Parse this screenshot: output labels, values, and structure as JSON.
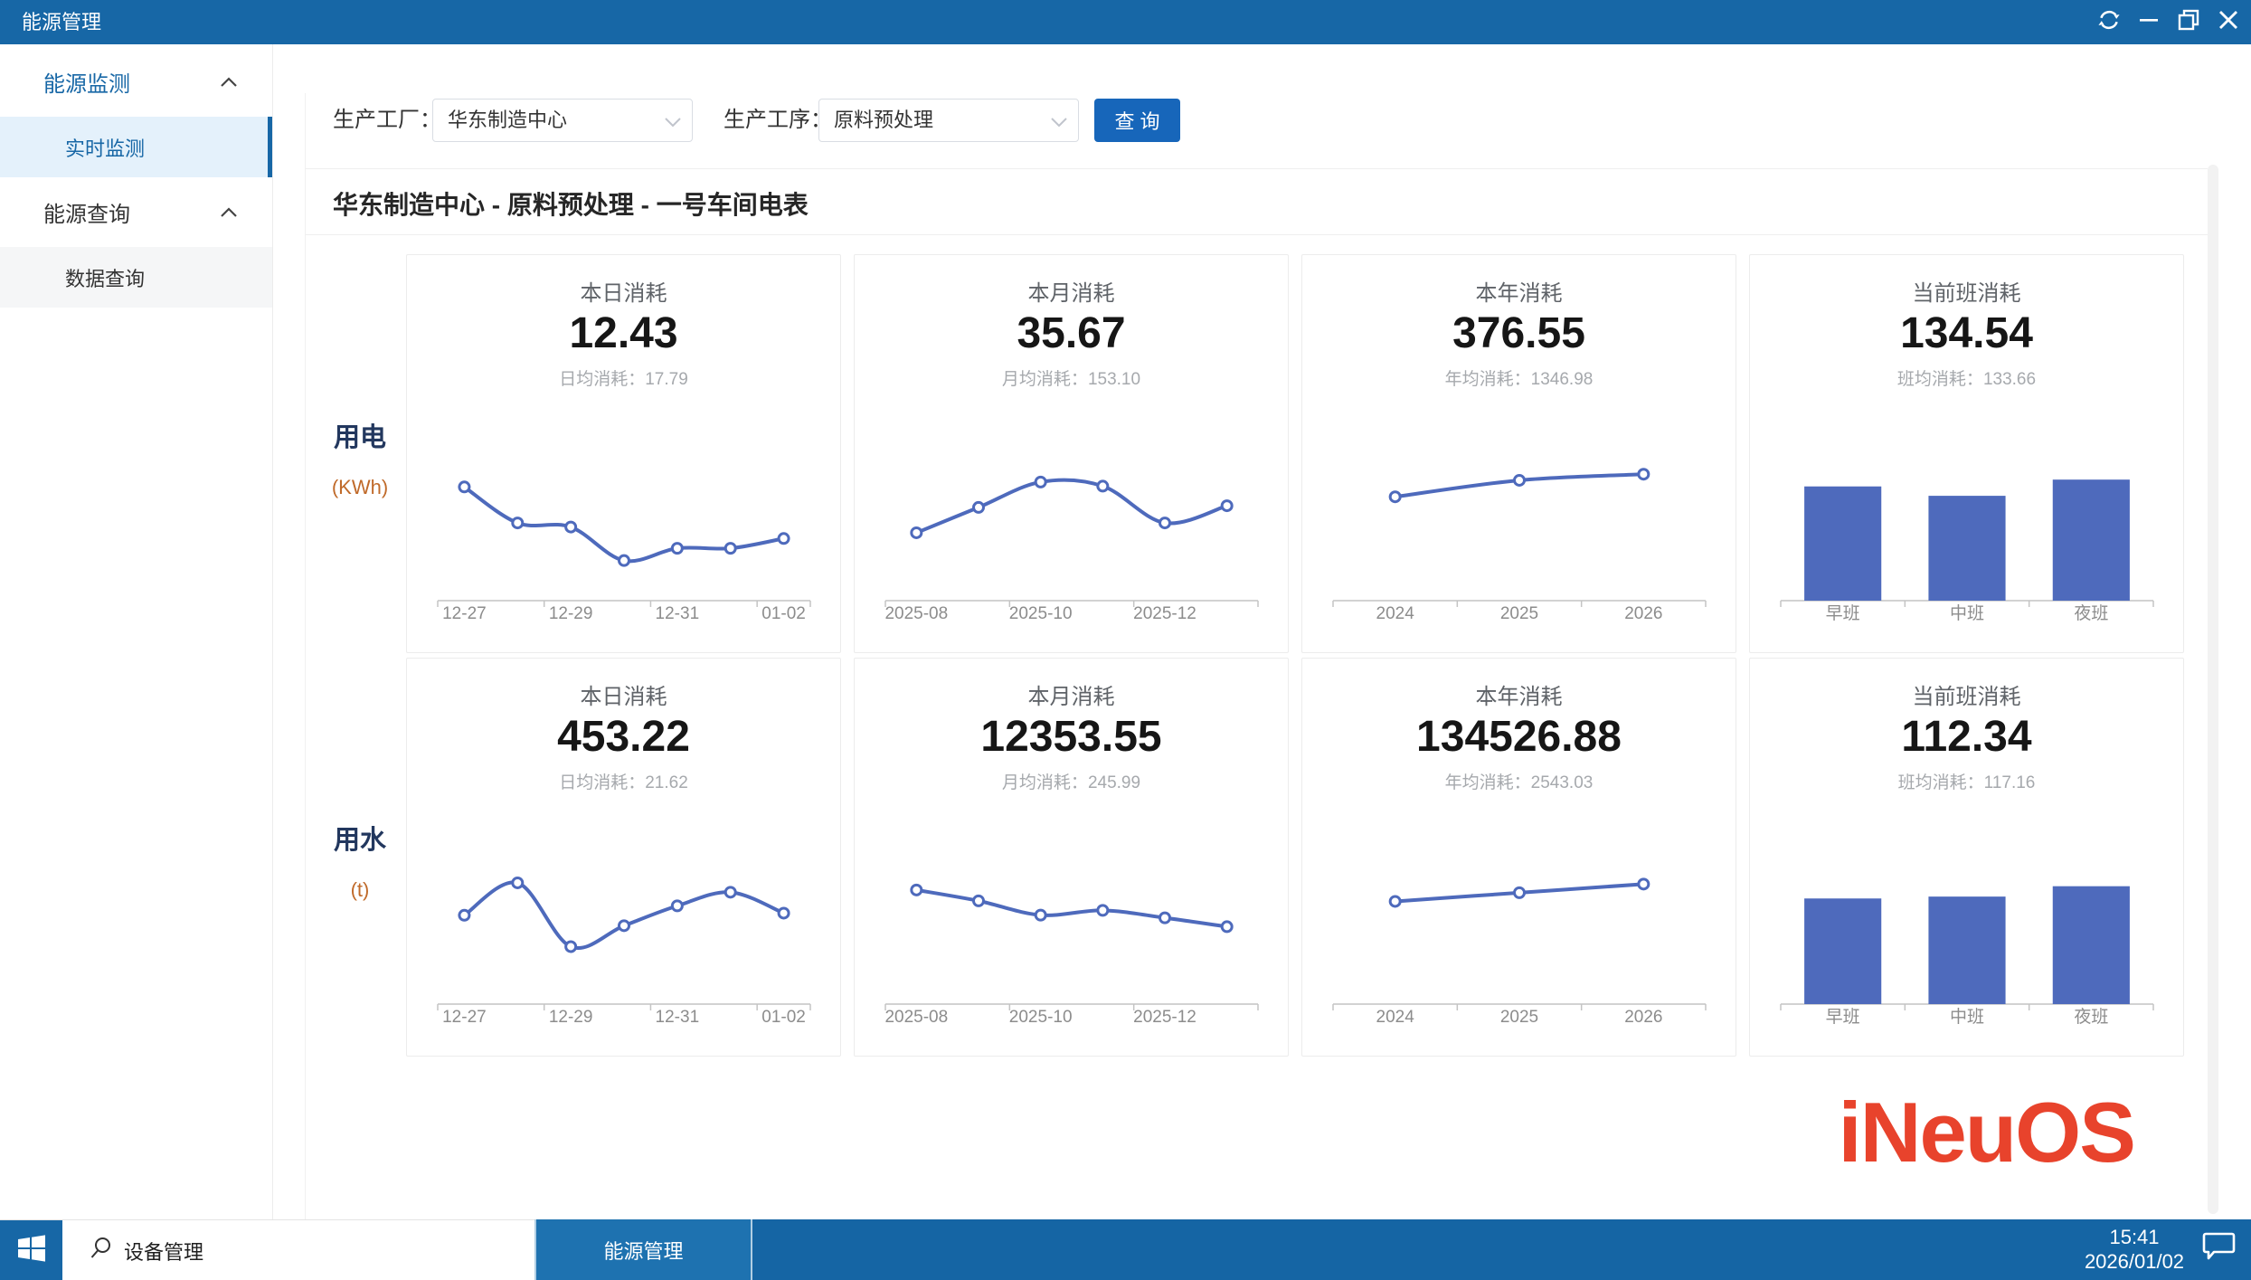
{
  "window": {
    "title": "能源管理",
    "controls": {
      "refresh": "refresh",
      "minimize": "minimize",
      "maximize": "maximize",
      "close": "close"
    }
  },
  "sidebar": {
    "groups": [
      {
        "label": "能源监测",
        "items": [
          {
            "label": "实时监测",
            "active": true
          }
        ]
      },
      {
        "label": "能源查询",
        "items": [
          {
            "label": "数据查询",
            "active": false
          }
        ]
      }
    ]
  },
  "filters": {
    "factory_label": "生产工厂：",
    "factory_value": "华东制造中心",
    "process_label": "生产工序：",
    "process_value": "原料预处理",
    "query_label": "查 询"
  },
  "section_title": "华东制造中心 - 原料预处理 - 一号车间电表",
  "rows": [
    {
      "label": "用电",
      "unit": "(KWh)",
      "cards": [
        {
          "title": "本日消耗",
          "value": "12.43",
          "avg_label": "日均消耗：",
          "avg_value": "17.79",
          "chart": {
            "type": "line",
            "categories": [
              "12-27",
              "12-28",
              "12-29",
              "12-30",
              "12-31",
              "01-01",
              "01-02"
            ],
            "label_step": 2,
            "values": [
              21.9,
              17.5,
              17.0,
              12.9,
              14.4,
              14.4,
              15.6
            ],
            "ylim": [
              8,
              31
            ]
          }
        },
        {
          "title": "本月消耗",
          "value": "35.67",
          "avg_label": "月均消耗：",
          "avg_value": "153.10",
          "chart": {
            "type": "line",
            "categories": [
              "2025-08",
              "2025-09",
              "2025-10",
              "2025-11",
              "2025-12",
              "2026-01"
            ],
            "label_step": 2,
            "values": [
              118,
              149,
              180,
              175,
              130,
              151
            ],
            "ylim": [
              35,
              265
            ]
          }
        },
        {
          "title": "本年消耗",
          "value": "376.55",
          "avg_label": "年均消耗：",
          "avg_value": "1346.98",
          "chart": {
            "type": "line",
            "categories": [
              "2024",
              "2025",
              "2026"
            ],
            "label_step": 1,
            "values": [
              1210,
              1345,
              1395
            ],
            "ylim": [
              360,
              1900
            ]
          }
        },
        {
          "title": "当前班消耗",
          "value": "134.54",
          "avg_label": "班均消耗：",
          "avg_value": "133.66",
          "chart": {
            "type": "bar",
            "categories": [
              "早班",
              "中班",
              "夜班"
            ],
            "label_step": 1,
            "values": [
              134,
              123,
              142
            ],
            "ylim": [
              0,
              260
            ]
          }
        }
      ]
    },
    {
      "label": "用水",
      "unit": "(t)",
      "cards": [
        {
          "title": "本日消耗",
          "value": "453.22",
          "avg_label": "日均消耗：",
          "avg_value": "21.62",
          "chart": {
            "type": "line",
            "categories": [
              "12-27",
              "12-28",
              "12-29",
              "12-30",
              "12-31",
              "01-01",
              "01-02"
            ],
            "label_step": 2,
            "values": [
              21.5,
              24.6,
              18.5,
              20.5,
              22.4,
              23.7,
              21.7
            ],
            "ylim": [
              13,
              31
            ]
          }
        },
        {
          "title": "本月消耗",
          "value": "12353.55",
          "avg_label": "月均消耗：",
          "avg_value": "245.99",
          "chart": {
            "type": "line",
            "categories": [
              "2025-08",
              "2025-09",
              "2025-10",
              "2025-11",
              "2025-12",
              "2026-01"
            ],
            "label_step": 2,
            "values": [
              268,
              252,
              231,
              238,
              227,
              214
            ],
            "ylim": [
              100,
              377
            ]
          }
        },
        {
          "title": "本年消耗",
          "value": "134526.88",
          "avg_label": "年均消耗：",
          "avg_value": "2543.03",
          "chart": {
            "type": "line",
            "categories": [
              "2024",
              "2025",
              "2026"
            ],
            "label_step": 1,
            "values": [
              2460,
              2545,
              2630
            ],
            "ylim": [
              1450,
              3300
            ]
          }
        },
        {
          "title": "当前班消耗",
          "value": "112.34",
          "avg_label": "班均消耗：",
          "avg_value": "117.16",
          "chart": {
            "type": "bar",
            "categories": [
              "早班",
              "中班",
              "夜班"
            ],
            "label_step": 1,
            "values": [
              112,
              114,
              125
            ],
            "ylim": [
              0,
              235
            ]
          }
        }
      ]
    }
  ],
  "logo": {
    "text": "iNeuOS"
  },
  "taskbar": {
    "search_app": "设备管理",
    "active_app": "能源管理",
    "time": "15:41",
    "date": "2026/01/02"
  },
  "colors": {
    "titlebar_blue": "#1767a6",
    "button_blue": "#1766ba",
    "chart_blue": "#4e6abc",
    "unit_orange": "#c06a2a",
    "logo_red": "#e8432c",
    "taskbar_blue": "#1565a4",
    "axis_gray": "#c4c4c4",
    "axis_label_gray": "#8c8c8c"
  }
}
